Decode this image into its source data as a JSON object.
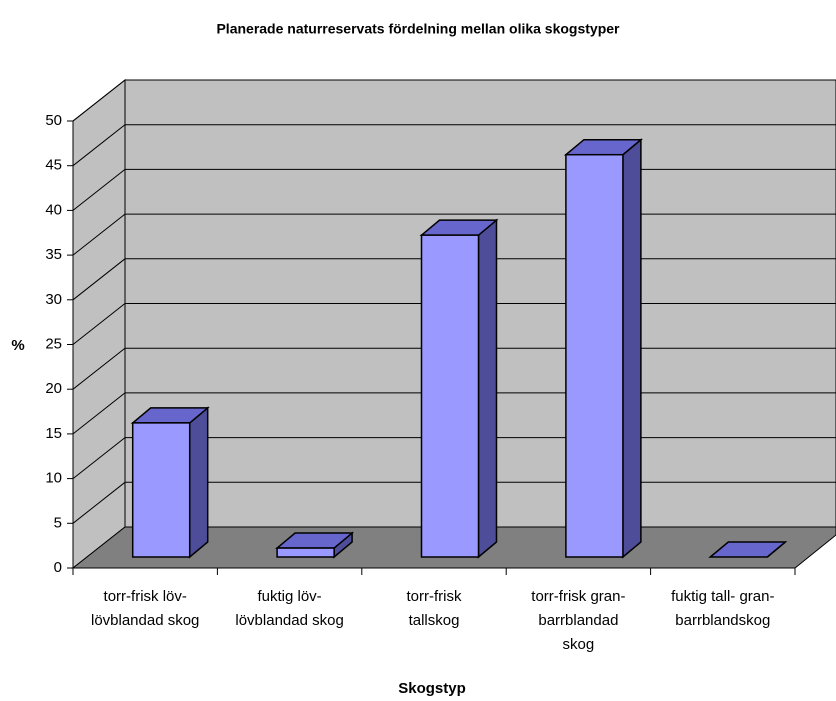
{
  "chart_data": {
    "type": "bar3d",
    "title": "Planerade naturreservats fördelning mellan olika skogstyper",
    "xlabel": "Skogstyp",
    "ylabel": "%",
    "categories": [
      [
        "torr-frisk löv-",
        "lövblandad skog"
      ],
      [
        "fuktig löv-",
        "lövblandad skog"
      ],
      [
        "torr-frisk",
        "tallskog"
      ],
      [
        "torr-frisk gran-",
        "barrblandad",
        "skog"
      ],
      [
        "fuktig tall- gran-",
        "barrblandskog"
      ]
    ],
    "values": [
      15,
      1,
      36,
      45,
      0
    ],
    "color": "#9999ff",
    "side_color": "#4d4d99",
    "top_color": "#6666cc",
    "ylim": [
      0,
      50
    ],
    "yticks": [
      0,
      5,
      10,
      15,
      20,
      25,
      30,
      35,
      40,
      45,
      50
    ],
    "grid": true
  }
}
